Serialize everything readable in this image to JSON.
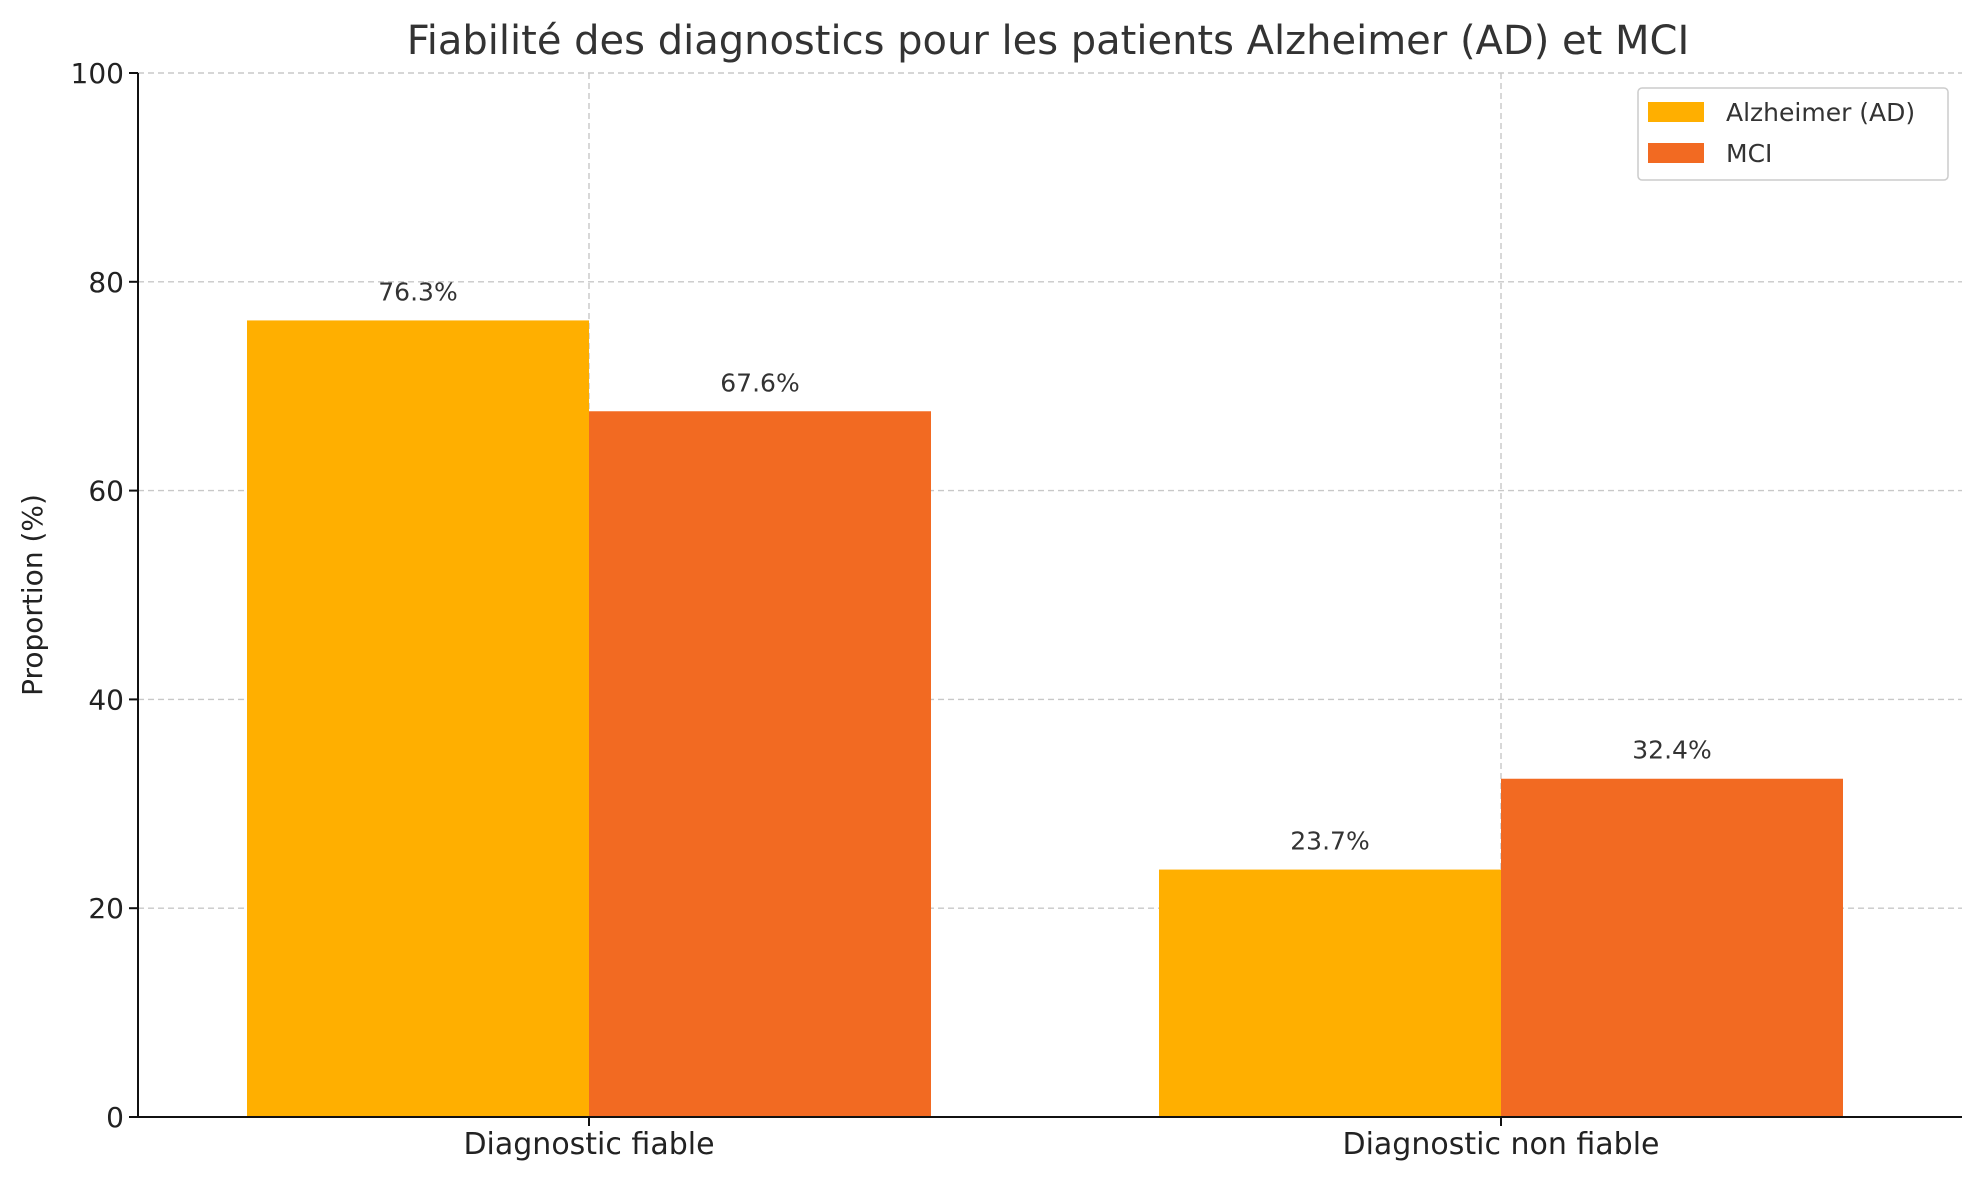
{
  "chart_data": {
    "type": "bar",
    "title": "Fiabilité des diagnostics pour les patients Alzheimer (AD) et MCI",
    "xlabel": "",
    "ylabel": "Proportion (%)",
    "ylim": [
      0,
      100
    ],
    "yticks": [
      0,
      20,
      40,
      60,
      80,
      100
    ],
    "categories": [
      "Diagnostic fiable",
      "Diagnostic non fiable"
    ],
    "series": [
      {
        "name": "Alzheimer (AD)",
        "color": "#FFAF00",
        "values": [
          76.3,
          23.7
        ],
        "labels": [
          "76.3%",
          "23.7%"
        ]
      },
      {
        "name": "MCI",
        "color": "#F26A22",
        "values": [
          67.6,
          32.4
        ],
        "labels": [
          "67.6%",
          "32.4%"
        ]
      }
    ],
    "grid": true,
    "legend_position": "top-right"
  }
}
